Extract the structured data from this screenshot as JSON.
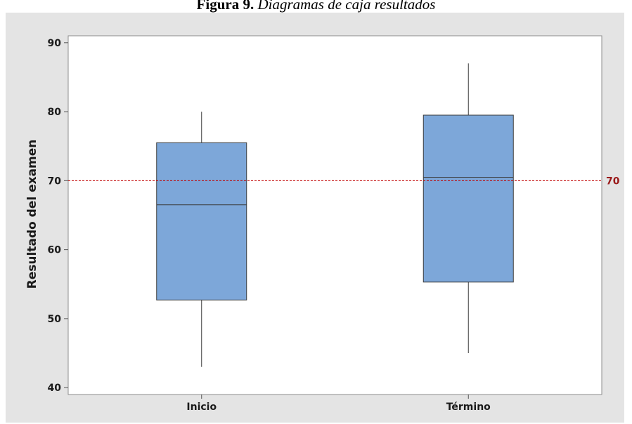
{
  "caption": {
    "label": "Figura 9.",
    "text": "Diagramas de caja resultados"
  },
  "chart_data": {
    "type": "boxplot",
    "title": "",
    "xlabel": "",
    "ylabel": "Resultado del examen",
    "ylim": [
      39,
      91
    ],
    "yticks": [
      40,
      50,
      60,
      70,
      80,
      90
    ],
    "categories": [
      "Inicio",
      "Término"
    ],
    "boxes": [
      {
        "category": "Inicio",
        "min": 43,
        "q1": 52.7,
        "median": 66.5,
        "q3": 75.5,
        "max": 80
      },
      {
        "category": "Término",
        "min": 45,
        "q1": 55.3,
        "median": 70.5,
        "q3": 79.5,
        "max": 87
      }
    ],
    "reference_line": {
      "value": 70,
      "label": "70",
      "style": "dashed",
      "color": "#c00000"
    },
    "colors": {
      "box_fill": "#7da7d9",
      "box_stroke": "#3a3a3a",
      "panel_bg": "#e4e4e4",
      "plot_bg": "#ffffff"
    },
    "grid": false,
    "legend": "none"
  }
}
